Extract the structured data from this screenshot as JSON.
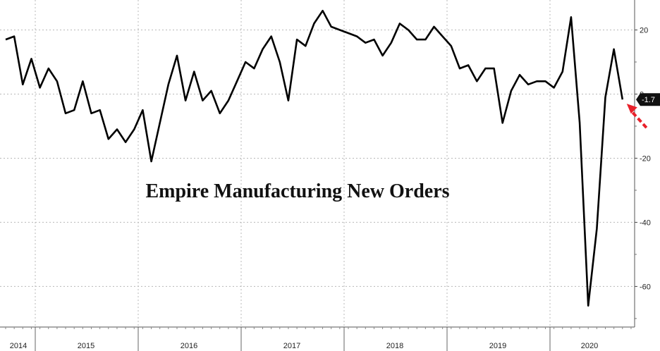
{
  "chart_data": {
    "type": "line",
    "title": "Empire Manufacturing New Orders",
    "xlabel": "",
    "ylabel": "",
    "x_tick_labels": [
      "2014",
      "2015",
      "2016",
      "2017",
      "2018",
      "2019",
      "2020"
    ],
    "y_ticks": [
      20,
      0,
      -20,
      -40,
      -60
    ],
    "ylim": [
      -72,
      30
    ],
    "grid": true,
    "last_value_label": "-1.7",
    "arrow_color": "#e8202a",
    "line_color": "#000000",
    "series": [
      {
        "values": [
          17,
          18,
          3,
          11,
          2,
          8,
          4,
          -6,
          -5,
          4,
          -6,
          -5,
          -14,
          -11,
          -15,
          -11,
          -5,
          -21,
          -9,
          3,
          12,
          -2,
          7,
          -2,
          1,
          -6,
          -2,
          4,
          10,
          8,
          14,
          18,
          10,
          -2,
          17,
          15,
          22,
          26,
          21,
          20,
          19,
          18,
          16,
          17,
          12,
          16,
          22,
          20,
          17,
          17,
          21,
          18,
          15,
          8,
          9,
          4,
          8,
          8,
          -9,
          1,
          6,
          3,
          4,
          4,
          2,
          7,
          24,
          -9,
          -66,
          -42,
          -1,
          14,
          -1.7
        ]
      }
    ]
  }
}
